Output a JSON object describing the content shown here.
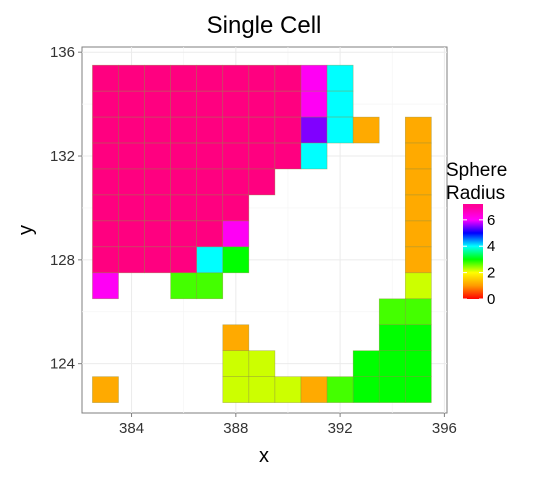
{
  "chart_data": {
    "type": "heatmap",
    "title": "Single Cell",
    "xlabel": "x",
    "ylabel": "y",
    "xlim": [
      382.1,
      396.1
    ],
    "ylim": [
      122.1,
      136.2
    ],
    "xticks": [
      384,
      388,
      392,
      396
    ],
    "yticks": [
      124,
      128,
      132,
      136
    ],
    "grid": true,
    "legend": {
      "title_lines": [
        "Sphere",
        "Radius"
      ],
      "ticks": [
        0,
        2,
        4,
        6
      ],
      "range": [
        0,
        7.2
      ],
      "colormap": "rainbow: 0 red, 1 orange, 2 yellow, 3 green, 4 cyan, 5 blue, 6 magenta, 7 pink",
      "placement": "right"
    },
    "cells": [
      {
        "x": 383,
        "y": 135,
        "value": 7.2
      },
      {
        "x": 384,
        "y": 135,
        "value": 7.2
      },
      {
        "x": 385,
        "y": 135,
        "value": 7.2
      },
      {
        "x": 386,
        "y": 135,
        "value": 7.2
      },
      {
        "x": 387,
        "y": 135,
        "value": 7.2
      },
      {
        "x": 388,
        "y": 135,
        "value": 7.2
      },
      {
        "x": 389,
        "y": 135,
        "value": 7.2
      },
      {
        "x": 390,
        "y": 135,
        "value": 7.2
      },
      {
        "x": 391,
        "y": 135,
        "value": 6.1
      },
      {
        "x": 392,
        "y": 135,
        "value": 4.0
      },
      {
        "x": 383,
        "y": 134,
        "value": 7.2
      },
      {
        "x": 384,
        "y": 134,
        "value": 7.2
      },
      {
        "x": 385,
        "y": 134,
        "value": 7.2
      },
      {
        "x": 386,
        "y": 134,
        "value": 7.2
      },
      {
        "x": 387,
        "y": 134,
        "value": 7.2
      },
      {
        "x": 388,
        "y": 134,
        "value": 7.2
      },
      {
        "x": 389,
        "y": 134,
        "value": 7.2
      },
      {
        "x": 390,
        "y": 134,
        "value": 7.2
      },
      {
        "x": 391,
        "y": 134,
        "value": 6.1
      },
      {
        "x": 392,
        "y": 134,
        "value": 4.0
      },
      {
        "x": 383,
        "y": 133,
        "value": 7.2
      },
      {
        "x": 384,
        "y": 133,
        "value": 7.2
      },
      {
        "x": 385,
        "y": 133,
        "value": 7.2
      },
      {
        "x": 386,
        "y": 133,
        "value": 7.2
      },
      {
        "x": 387,
        "y": 133,
        "value": 7.2
      },
      {
        "x": 388,
        "y": 133,
        "value": 7.2
      },
      {
        "x": 389,
        "y": 133,
        "value": 7.2
      },
      {
        "x": 390,
        "y": 133,
        "value": 7.2
      },
      {
        "x": 391,
        "y": 133,
        "value": 5.5
      },
      {
        "x": 392,
        "y": 133,
        "value": 4.0
      },
      {
        "x": 393,
        "y": 133,
        "value": 1.0
      },
      {
        "x": 395,
        "y": 133,
        "value": 1.0
      },
      {
        "x": 383,
        "y": 132,
        "value": 7.2
      },
      {
        "x": 384,
        "y": 132,
        "value": 7.2
      },
      {
        "x": 385,
        "y": 132,
        "value": 7.2
      },
      {
        "x": 386,
        "y": 132,
        "value": 7.2
      },
      {
        "x": 387,
        "y": 132,
        "value": 7.2
      },
      {
        "x": 388,
        "y": 132,
        "value": 7.2
      },
      {
        "x": 389,
        "y": 132,
        "value": 7.2
      },
      {
        "x": 390,
        "y": 132,
        "value": 7.2
      },
      {
        "x": 391,
        "y": 132,
        "value": 4.0
      },
      {
        "x": 395,
        "y": 132,
        "value": 1.0
      },
      {
        "x": 383,
        "y": 131,
        "value": 7.2
      },
      {
        "x": 384,
        "y": 131,
        "value": 7.2
      },
      {
        "x": 385,
        "y": 131,
        "value": 7.2
      },
      {
        "x": 386,
        "y": 131,
        "value": 7.2
      },
      {
        "x": 387,
        "y": 131,
        "value": 7.2
      },
      {
        "x": 388,
        "y": 131,
        "value": 7.2
      },
      {
        "x": 389,
        "y": 131,
        "value": 7.2
      },
      {
        "x": 395,
        "y": 131,
        "value": 1.0
      },
      {
        "x": 383,
        "y": 130,
        "value": 7.2
      },
      {
        "x": 384,
        "y": 130,
        "value": 7.2
      },
      {
        "x": 385,
        "y": 130,
        "value": 7.2
      },
      {
        "x": 386,
        "y": 130,
        "value": 7.2
      },
      {
        "x": 387,
        "y": 130,
        "value": 7.2
      },
      {
        "x": 388,
        "y": 130,
        "value": 7.2
      },
      {
        "x": 395,
        "y": 130,
        "value": 1.0
      },
      {
        "x": 383,
        "y": 129,
        "value": 7.2
      },
      {
        "x": 384,
        "y": 129,
        "value": 7.2
      },
      {
        "x": 385,
        "y": 129,
        "value": 7.2
      },
      {
        "x": 386,
        "y": 129,
        "value": 7.2
      },
      {
        "x": 387,
        "y": 129,
        "value": 7.2
      },
      {
        "x": 388,
        "y": 129,
        "value": 6.1
      },
      {
        "x": 395,
        "y": 129,
        "value": 1.0
      },
      {
        "x": 383,
        "y": 128,
        "value": 7.2
      },
      {
        "x": 384,
        "y": 128,
        "value": 7.2
      },
      {
        "x": 385,
        "y": 128,
        "value": 7.2
      },
      {
        "x": 386,
        "y": 128,
        "value": 7.2
      },
      {
        "x": 387,
        "y": 128,
        "value": 4.0
      },
      {
        "x": 388,
        "y": 128,
        "value": 3.0
      },
      {
        "x": 395,
        "y": 128,
        "value": 1.0
      },
      {
        "x": 383,
        "y": 127,
        "value": 6.1
      },
      {
        "x": 386,
        "y": 127,
        "value": 2.6
      },
      {
        "x": 387,
        "y": 127,
        "value": 2.6
      },
      {
        "x": 395,
        "y": 127,
        "value": 1.8
      },
      {
        "x": 394,
        "y": 126,
        "value": 2.6
      },
      {
        "x": 395,
        "y": 126,
        "value": 2.6
      },
      {
        "x": 388,
        "y": 125,
        "value": 1.0
      },
      {
        "x": 394,
        "y": 125,
        "value": 3.0
      },
      {
        "x": 395,
        "y": 125,
        "value": 3.0
      },
      {
        "x": 388,
        "y": 124,
        "value": 1.8
      },
      {
        "x": 389,
        "y": 124,
        "value": 1.8
      },
      {
        "x": 393,
        "y": 124,
        "value": 3.0
      },
      {
        "x": 394,
        "y": 124,
        "value": 3.0
      },
      {
        "x": 395,
        "y": 124,
        "value": 3.0
      },
      {
        "x": 383,
        "y": 123,
        "value": 1.0
      },
      {
        "x": 388,
        "y": 123,
        "value": 1.8
      },
      {
        "x": 389,
        "y": 123,
        "value": 1.8
      },
      {
        "x": 390,
        "y": 123,
        "value": 1.8
      },
      {
        "x": 391,
        "y": 123,
        "value": 1.0
      },
      {
        "x": 392,
        "y": 123,
        "value": 2.6
      },
      {
        "x": 393,
        "y": 123,
        "value": 3.0
      },
      {
        "x": 394,
        "y": 123,
        "value": 3.0
      },
      {
        "x": 395,
        "y": 123,
        "value": 3.0
      }
    ]
  }
}
